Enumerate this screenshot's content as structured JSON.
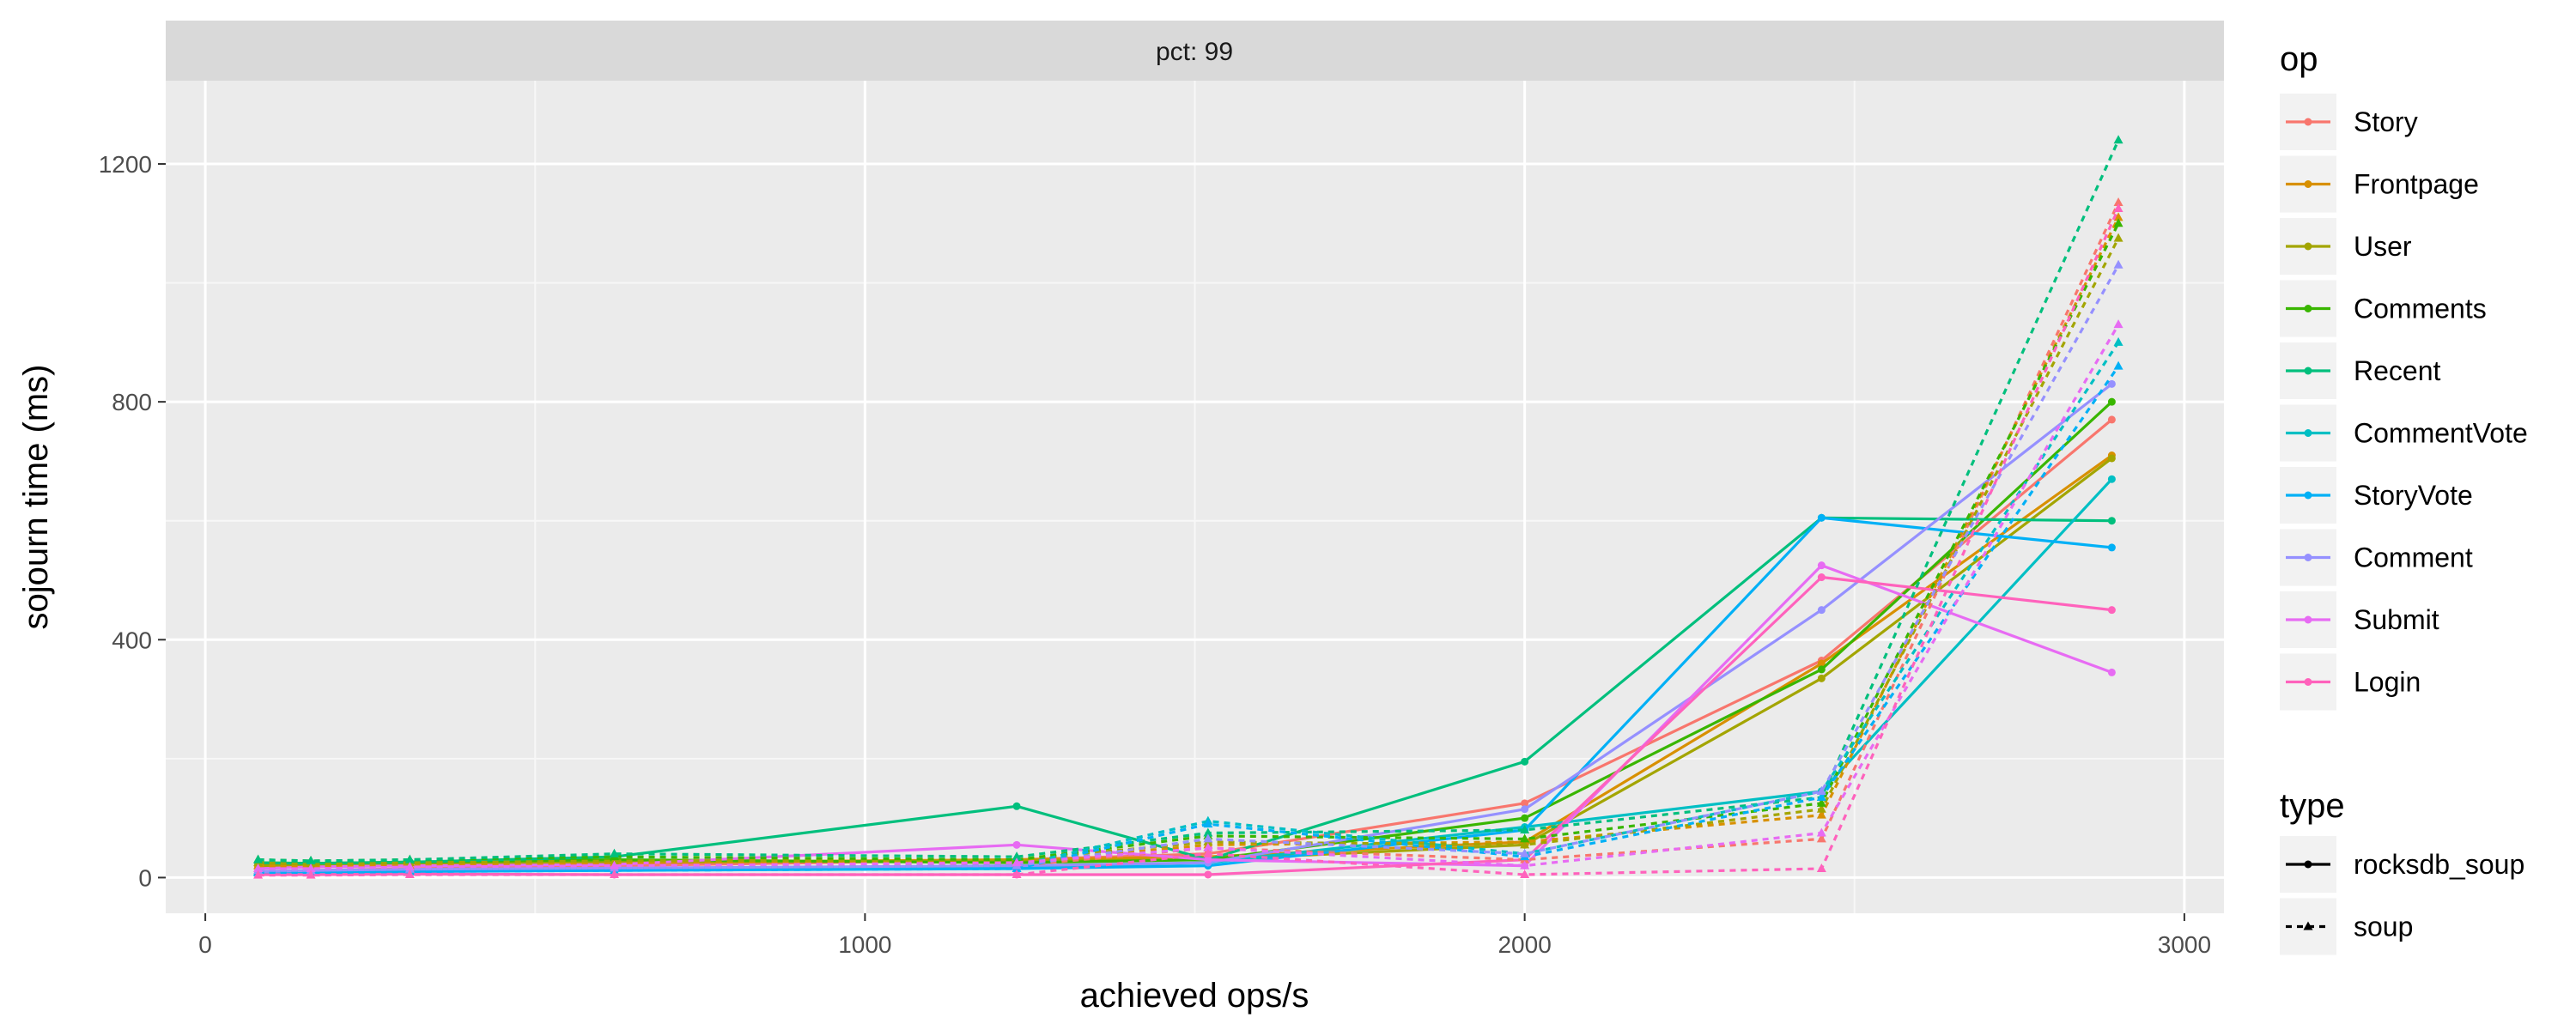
{
  "chart_data": {
    "type": "line",
    "facet_label": "pct: 99",
    "xlabel": "achieved ops/s",
    "ylabel": "sojourn time (ms)",
    "xlim": [
      -60,
      3060
    ],
    "ylim": [
      -60,
      1340
    ],
    "x_ticks": [
      0,
      1000,
      2000,
      3000
    ],
    "y_ticks": [
      0,
      400,
      800,
      1200
    ],
    "grid": true,
    "legend_position": "right",
    "legends": [
      {
        "title": "op",
        "entries": [
          "Story",
          "Frontpage",
          "User",
          "Comments",
          "Recent",
          "CommentVote",
          "StoryVote",
          "Comment",
          "Submit",
          "Login"
        ]
      },
      {
        "title": "type",
        "entries": [
          "rocksdb_soup",
          "soup"
        ]
      }
    ],
    "colors": {
      "Story": "#F8766D",
      "Frontpage": "#D89000",
      "User": "#A3A500",
      "Comments": "#39B600",
      "Recent": "#00BF7D",
      "CommentVote": "#00BFC4",
      "StoryVote": "#00B0F6",
      "Comment": "#9590FF",
      "Submit": "#E76BF3",
      "Login": "#FF62BC"
    },
    "series": [
      {
        "op": "Story",
        "type": "rocksdb_soup",
        "x": [
          80,
          160,
          310,
          620,
          1230,
          1520,
          2000,
          2450,
          2890
        ],
        "y": [
          10,
          12,
          15,
          20,
          30,
          40,
          125,
          365,
          770
        ]
      },
      {
        "op": "Frontpage",
        "type": "rocksdb_soup",
        "x": [
          80,
          160,
          310,
          620,
          1230,
          1520,
          2000,
          2450,
          2890
        ],
        "y": [
          18,
          20,
          22,
          25,
          30,
          35,
          60,
          360,
          710
        ]
      },
      {
        "op": "User",
        "type": "rocksdb_soup",
        "x": [
          80,
          160,
          310,
          620,
          1230,
          1520,
          2000,
          2450,
          2890
        ],
        "y": [
          20,
          22,
          24,
          26,
          28,
          30,
          55,
          335,
          705
        ]
      },
      {
        "op": "Comments",
        "type": "rocksdb_soup",
        "x": [
          80,
          160,
          310,
          620,
          1230,
          1520,
          2000,
          2450,
          2890
        ],
        "y": [
          25,
          24,
          26,
          30,
          25,
          30,
          100,
          350,
          800
        ]
      },
      {
        "op": "Recent",
        "type": "rocksdb_soup",
        "x": [
          80,
          160,
          310,
          620,
          1230,
          1520,
          2000,
          2450,
          2890
        ],
        "y": [
          25,
          24,
          26,
          35,
          120,
          30,
          195,
          605,
          600
        ]
      },
      {
        "op": "CommentVote",
        "type": "rocksdb_soup",
        "x": [
          80,
          160,
          310,
          620,
          1230,
          1520,
          2000,
          2450,
          2890
        ],
        "y": [
          8,
          10,
          12,
          15,
          18,
          25,
          85,
          145,
          670
        ]
      },
      {
        "op": "StoryVote",
        "type": "rocksdb_soup",
        "x": [
          80,
          160,
          310,
          620,
          1230,
          1520,
          2000,
          2450,
          2890
        ],
        "y": [
          6,
          8,
          10,
          12,
          15,
          20,
          80,
          605,
          555
        ]
      },
      {
        "op": "Comment",
        "type": "rocksdb_soup",
        "x": [
          80,
          160,
          310,
          620,
          1230,
          1520,
          2000,
          2450,
          2890
        ],
        "y": [
          10,
          12,
          14,
          16,
          20,
          25,
          115,
          450,
          830
        ]
      },
      {
        "op": "Submit",
        "type": "rocksdb_soup",
        "x": [
          80,
          160,
          310,
          620,
          1230,
          1520,
          2000,
          2450,
          2890
        ],
        "y": [
          15,
          18,
          20,
          22,
          55,
          30,
          20,
          525,
          345
        ]
      },
      {
        "op": "Login",
        "type": "rocksdb_soup",
        "x": [
          80,
          160,
          310,
          620,
          1230,
          1520,
          2000,
          2450,
          2890
        ],
        "y": [
          5,
          5,
          6,
          5,
          5,
          5,
          30,
          505,
          450
        ]
      },
      {
        "op": "Story",
        "type": "soup",
        "x": [
          80,
          160,
          310,
          620,
          1230,
          1520,
          2000,
          2450,
          2900
        ],
        "y": [
          15,
          14,
          15,
          20,
          20,
          50,
          30,
          65,
          1135
        ]
      },
      {
        "op": "Frontpage",
        "type": "soup",
        "x": [
          80,
          160,
          310,
          620,
          1230,
          1520,
          2000,
          2450,
          2900
        ],
        "y": [
          20,
          18,
          20,
          25,
          25,
          55,
          60,
          105,
          1110
        ]
      },
      {
        "op": "User",
        "type": "soup",
        "x": [
          80,
          160,
          310,
          620,
          1230,
          1520,
          2000,
          2450,
          2900
        ],
        "y": [
          25,
          22,
          25,
          28,
          30,
          60,
          55,
          115,
          1075
        ]
      },
      {
        "op": "Comments",
        "type": "soup",
        "x": [
          80,
          160,
          310,
          620,
          1230,
          1520,
          2000,
          2450,
          2900
        ],
        "y": [
          30,
          28,
          30,
          35,
          30,
          70,
          65,
          125,
          1100
        ]
      },
      {
        "op": "Recent",
        "type": "soup",
        "x": [
          80,
          160,
          310,
          620,
          1230,
          1520,
          2000,
          2450,
          2900
        ],
        "y": [
          30,
          28,
          30,
          40,
          35,
          75,
          80,
          135,
          1240
        ]
      },
      {
        "op": "CommentVote",
        "type": "soup",
        "x": [
          80,
          160,
          310,
          620,
          1230,
          1520,
          2000,
          2450,
          2900
        ],
        "y": [
          10,
          10,
          12,
          15,
          20,
          95,
          40,
          145,
          900
        ]
      },
      {
        "op": "StoryVote",
        "type": "soup",
        "x": [
          80,
          160,
          310,
          620,
          1230,
          1520,
          2000,
          2450,
          2900
        ],
        "y": [
          8,
          8,
          10,
          12,
          15,
          90,
          35,
          135,
          860
        ]
      },
      {
        "op": "Comment",
        "type": "soup",
        "x": [
          80,
          160,
          310,
          620,
          1230,
          1520,
          2000,
          2450,
          2900
        ],
        "y": [
          12,
          12,
          14,
          16,
          20,
          65,
          40,
          145,
          1030
        ]
      },
      {
        "op": "Submit",
        "type": "soup",
        "x": [
          80,
          160,
          310,
          620,
          1230,
          1520,
          2000,
          2450,
          2900
        ],
        "y": [
          15,
          15,
          18,
          20,
          25,
          50,
          20,
          75,
          930
        ]
      },
      {
        "op": "Login",
        "type": "soup",
        "x": [
          80,
          160,
          310,
          620,
          1230,
          1520,
          2000,
          2450,
          2900
        ],
        "y": [
          4,
          4,
          5,
          5,
          5,
          40,
          5,
          15,
          1125
        ]
      }
    ]
  }
}
